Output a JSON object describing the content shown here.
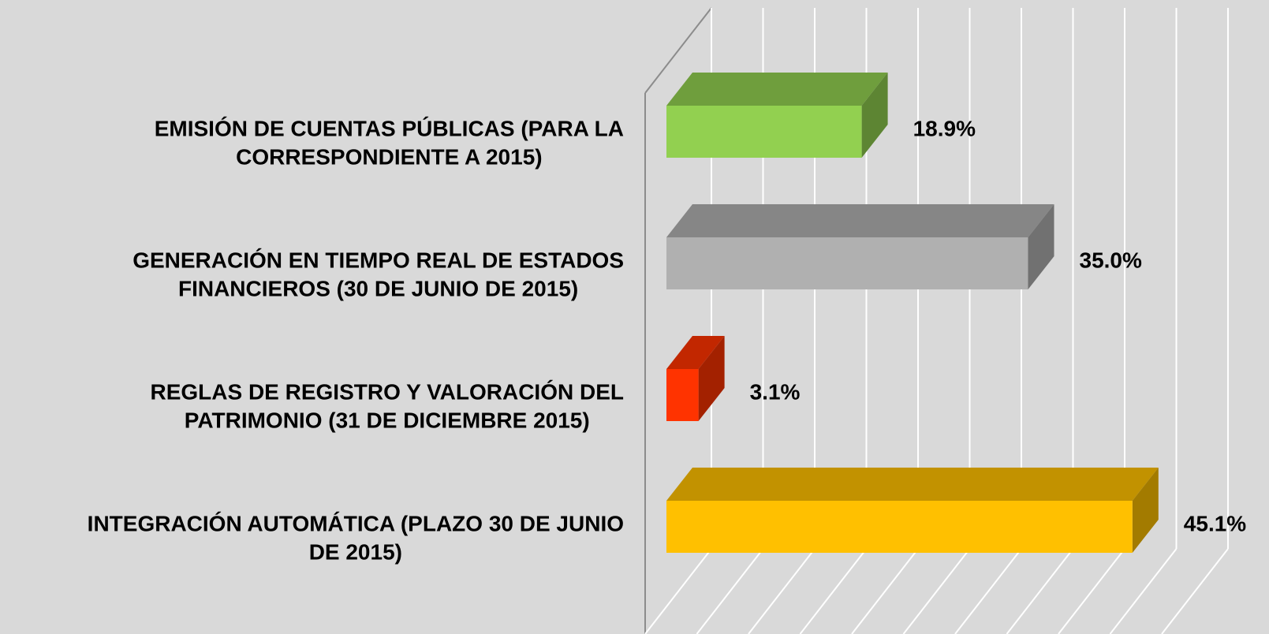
{
  "chart_data": {
    "type": "bar3d_horizontal",
    "categories": [
      [
        "EMISIÓN DE CUENTAS PÚBLICAS (PARA LA",
        "CORRESPONDIENTE A 2015)"
      ],
      [
        "GENERACIÓN EN TIEMPO REAL DE ESTADOS",
        "FINANCIEROS (30 DE JUNIO DE 2015)"
      ],
      [
        "REGLAS DE REGISTRO Y VALORACIÓN DEL",
        "PATRIMONIO (31 DE DICIEMBRE 2015)"
      ],
      [
        "INTEGRACIÓN AUTOMÁTICA (PLAZO 30 DE JUNIO",
        "DE 2015)"
      ]
    ],
    "values": [
      18.9,
      35.0,
      3.1,
      45.1
    ],
    "value_labels": [
      "18.9%",
      "35.0%",
      "3.1%",
      "45.1%"
    ],
    "colors": [
      "#92d050",
      "#b0b0b0",
      "#ff3300",
      "#ffc000"
    ],
    "xlim": [
      0,
      50
    ],
    "xticks": [
      0,
      5,
      10,
      15,
      20,
      25,
      30,
      35,
      40,
      45,
      50
    ],
    "grid": true
  }
}
